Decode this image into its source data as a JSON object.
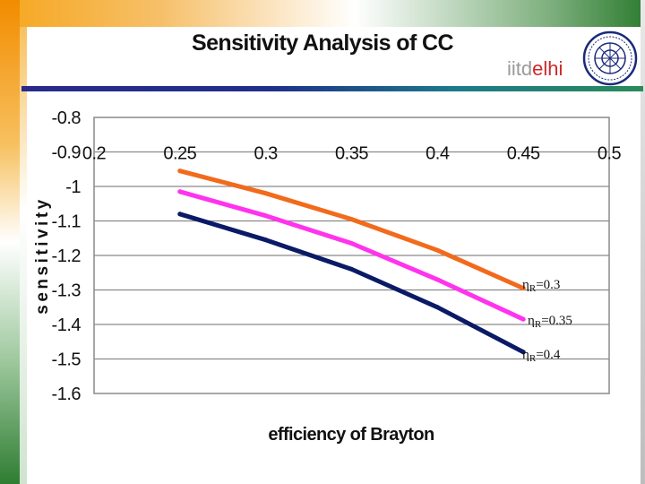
{
  "slide": {
    "title": "Sensitivity Analysis of CC",
    "logo": {
      "text_a": "iitd",
      "text_b": "elhi"
    }
  },
  "colors": {
    "series_03": "#f26a1b",
    "series_035": "#ff33ee",
    "series_04": "#0b1a66",
    "title_rule": "#1f2f8a",
    "plot_border": "#8a8a8a"
  },
  "chart_data": {
    "type": "line",
    "xlabel": "efficiency of Brayton",
    "ylabel": "sensitivity",
    "x_tick_labels": [
      "0.2",
      "0.25",
      "0.3",
      "0.35",
      "0.4",
      "0.45",
      "0.5"
    ],
    "y_tick_labels": [
      "-0.8",
      "-0.9",
      "-1",
      "-1.1",
      "-1.2",
      "-1.3",
      "-1.4",
      "-1.5",
      "-1.6"
    ],
    "xlim": [
      0.2,
      0.5
    ],
    "ylim": [
      -1.6,
      -0.8
    ],
    "x_axis_crossing": -0.9,
    "grid": "horizontal",
    "series": [
      {
        "name": "ηR=0.3",
        "label_main": "η",
        "label_sub": "R",
        "label_rest": "=0.3",
        "x": [
          0.25,
          0.3,
          0.35,
          0.4,
          0.45
        ],
        "values": [
          -0.955,
          -1.02,
          -1.095,
          -1.185,
          -1.295
        ]
      },
      {
        "name": "ηR=0.35",
        "label_main": "η",
        "label_sub": "R",
        "label_rest": "=0.35",
        "x": [
          0.25,
          0.3,
          0.35,
          0.4,
          0.45
        ],
        "values": [
          -1.015,
          -1.085,
          -1.165,
          -1.27,
          -1.385
        ]
      },
      {
        "name": "ηR=0.4",
        "label_main": "η",
        "label_sub": "R",
        "label_rest": "=0.4",
        "x": [
          0.25,
          0.3,
          0.35,
          0.4,
          0.45
        ],
        "values": [
          -1.08,
          -1.155,
          -1.24,
          -1.35,
          -1.48
        ]
      }
    ]
  }
}
